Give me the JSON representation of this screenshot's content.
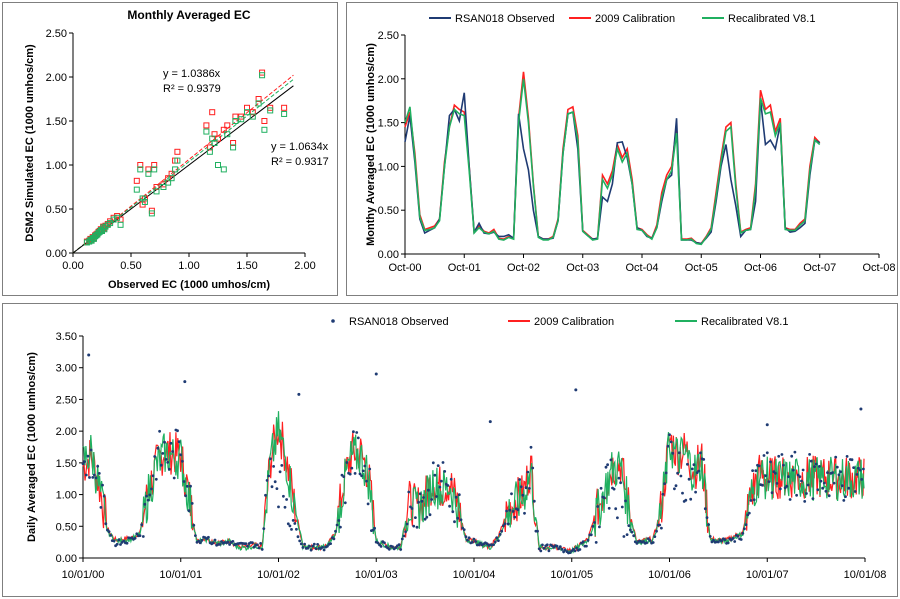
{
  "colors": {
    "observed": "#1f3b73",
    "calib2009": "#ff2020",
    "recal": "#20b060",
    "fitObserved": "#000000"
  },
  "chart_data": [
    {
      "type": "scatter",
      "title": "Monthly Averaged EC",
      "xlabel": "Observed EC (1000 umhos/cm)",
      "ylabel": "DSM2 Simulated EC (1000 umhos/cm)",
      "xlim": [
        0,
        2.0
      ],
      "ylim": [
        0,
        2.5
      ],
      "xticks": [
        "0.00",
        "0.50",
        "1.00",
        "1.50",
        "2.00"
      ],
      "yticks": [
        "0.00",
        "0.50",
        "1.00",
        "1.50",
        "2.00",
        "2.50"
      ],
      "annotations": [
        {
          "text": "y = 1.0386x",
          "series": "Recalibrated V8.1"
        },
        {
          "text": "R² = 0.9379",
          "series": "Recalibrated V8.1"
        },
        {
          "text": "y = 1.0634x",
          "series": "2009 Calibration"
        },
        {
          "text": "R² = 0.9317",
          "series": "2009 Calibration"
        }
      ],
      "trendlines": [
        {
          "series": "2009 Calibration",
          "slope": 1.0634
        },
        {
          "series": "Recalibrated V8.1",
          "slope": 1.0386
        },
        {
          "series": "1:1",
          "slope": 1.0
        }
      ],
      "series": [
        {
          "name": "2009 Calibration",
          "points": [
            [
              0.12,
              0.13
            ],
            [
              0.14,
              0.14
            ],
            [
              0.15,
              0.16
            ],
            [
              0.16,
              0.15
            ],
            [
              0.17,
              0.18
            ],
            [
              0.18,
              0.17
            ],
            [
              0.19,
              0.2
            ],
            [
              0.2,
              0.21
            ],
            [
              0.21,
              0.22
            ],
            [
              0.22,
              0.24
            ],
            [
              0.23,
              0.25
            ],
            [
              0.24,
              0.27
            ],
            [
              0.25,
              0.26
            ],
            [
              0.26,
              0.3
            ],
            [
              0.27,
              0.28
            ],
            [
              0.28,
              0.31
            ],
            [
              0.3,
              0.33
            ],
            [
              0.32,
              0.36
            ],
            [
              0.35,
              0.4
            ],
            [
              0.38,
              0.42
            ],
            [
              0.41,
              0.38
            ],
            [
              0.55,
              0.82
            ],
            [
              0.58,
              1.0
            ],
            [
              0.6,
              0.55
            ],
            [
              0.62,
              0.62
            ],
            [
              0.65,
              0.95
            ],
            [
              0.68,
              0.48
            ],
            [
              0.7,
              1.0
            ],
            [
              0.72,
              0.75
            ],
            [
              0.78,
              0.78
            ],
            [
              0.82,
              0.85
            ],
            [
              0.85,
              0.9
            ],
            [
              0.88,
              1.05
            ],
            [
              0.9,
              1.15
            ],
            [
              1.15,
              1.45
            ],
            [
              1.18,
              1.2
            ],
            [
              1.2,
              1.6
            ],
            [
              1.22,
              1.35
            ],
            [
              1.25,
              1.3
            ],
            [
              1.3,
              1.4
            ],
            [
              1.33,
              1.45
            ],
            [
              1.38,
              1.25
            ],
            [
              1.4,
              1.55
            ],
            [
              1.45,
              1.55
            ],
            [
              1.5,
              1.65
            ],
            [
              1.55,
              1.6
            ],
            [
              1.6,
              1.75
            ],
            [
              1.63,
              2.05
            ],
            [
              1.65,
              1.5
            ],
            [
              1.7,
              1.65
            ],
            [
              1.82,
              1.65
            ]
          ]
        },
        {
          "name": "Recalibrated V8.1",
          "points": [
            [
              0.12,
              0.12
            ],
            [
              0.14,
              0.13
            ],
            [
              0.15,
              0.15
            ],
            [
              0.16,
              0.14
            ],
            [
              0.17,
              0.17
            ],
            [
              0.18,
              0.16
            ],
            [
              0.19,
              0.19
            ],
            [
              0.2,
              0.2
            ],
            [
              0.21,
              0.21
            ],
            [
              0.22,
              0.23
            ],
            [
              0.23,
              0.24
            ],
            [
              0.24,
              0.26
            ],
            [
              0.25,
              0.25
            ],
            [
              0.26,
              0.29
            ],
            [
              0.27,
              0.27
            ],
            [
              0.28,
              0.3
            ],
            [
              0.3,
              0.32
            ],
            [
              0.32,
              0.34
            ],
            [
              0.35,
              0.38
            ],
            [
              0.38,
              0.4
            ],
            [
              0.41,
              0.32
            ],
            [
              0.55,
              0.72
            ],
            [
              0.58,
              0.95
            ],
            [
              0.6,
              0.62
            ],
            [
              0.62,
              0.58
            ],
            [
              0.65,
              0.9
            ],
            [
              0.68,
              0.45
            ],
            [
              0.7,
              0.95
            ],
            [
              0.72,
              0.7
            ],
            [
              0.78,
              0.75
            ],
            [
              0.82,
              0.8
            ],
            [
              0.85,
              0.85
            ],
            [
              0.88,
              0.95
            ],
            [
              0.9,
              1.05
            ],
            [
              1.15,
              1.38
            ],
            [
              1.18,
              1.15
            ],
            [
              1.2,
              1.3
            ],
            [
              1.22,
              1.25
            ],
            [
              1.25,
              1.0
            ],
            [
              1.3,
              0.95
            ],
            [
              1.33,
              1.35
            ],
            [
              1.38,
              1.2
            ],
            [
              1.4,
              1.5
            ],
            [
              1.45,
              1.52
            ],
            [
              1.5,
              1.6
            ],
            [
              1.55,
              1.55
            ],
            [
              1.6,
              1.7
            ],
            [
              1.63,
              2.02
            ],
            [
              1.65,
              1.4
            ],
            [
              1.7,
              1.62
            ],
            [
              1.82,
              1.58
            ]
          ]
        }
      ]
    },
    {
      "type": "line",
      "ylabel": "Monthy Averaged EC (1000 umhos/cm)",
      "ylim": [
        0,
        2.5
      ],
      "yticks": [
        "0.00",
        "0.50",
        "1.00",
        "1.50",
        "2.00",
        "2.50"
      ],
      "xticks": [
        "Oct-00",
        "Oct-01",
        "Oct-02",
        "Oct-03",
        "Oct-04",
        "Oct-05",
        "Oct-06",
        "Oct-07",
        "Oct-08"
      ],
      "legend": [
        "RSAN018 Observed",
        "2009 Calibration",
        "Recalibrated V8.1"
      ],
      "x_unit": "months since Oct-00",
      "series": [
        {
          "name": "RSAN018 Observed",
          "values": [
            1.28,
            1.58,
            1.05,
            0.4,
            0.24,
            0.27,
            0.3,
            0.4,
            1.0,
            1.58,
            1.65,
            1.52,
            1.84,
            1.0,
            0.25,
            0.35,
            0.24,
            0.23,
            0.25,
            0.2,
            0.2,
            0.22,
            0.18,
            1.6,
            1.2,
            0.96,
            0.5,
            0.2,
            0.17,
            0.17,
            0.18,
            0.38,
            1.15,
            1.6,
            1.62,
            1.2,
            0.26,
            0.21,
            0.17,
            0.18,
            0.65,
            0.6,
            0.8,
            1.27,
            1.28,
            1.1,
            0.8,
            0.3,
            0.27,
            0.2,
            0.18,
            0.3,
            0.6,
            0.85,
            0.9,
            1.55,
            0.16,
            0.16,
            0.16,
            0.13,
            0.12,
            0.18,
            0.25,
            0.6,
            1.0,
            1.25,
            0.85,
            0.55,
            0.2,
            0.27,
            0.28,
            0.6,
            1.76,
            1.25,
            1.3,
            1.2,
            1.48,
            0.3,
            0.25,
            0.26,
            0.3,
            0.35,
            0.9,
            1.3,
            1.27
          ]
        },
        {
          "name": "2009 Calibration",
          "values": [
            1.45,
            1.62,
            1.15,
            0.45,
            0.28,
            0.3,
            0.32,
            0.4,
            1.05,
            1.45,
            1.7,
            1.65,
            1.62,
            1.0,
            0.25,
            0.32,
            0.26,
            0.24,
            0.28,
            0.18,
            0.17,
            0.2,
            0.18,
            1.55,
            2.08,
            1.55,
            0.8,
            0.2,
            0.17,
            0.17,
            0.2,
            0.4,
            1.2,
            1.65,
            1.68,
            1.35,
            0.27,
            0.22,
            0.17,
            0.18,
            0.9,
            0.8,
            0.95,
            1.25,
            1.1,
            1.2,
            0.85,
            0.3,
            0.28,
            0.22,
            0.18,
            0.33,
            0.7,
            0.9,
            1.0,
            1.45,
            0.17,
            0.17,
            0.18,
            0.13,
            0.12,
            0.2,
            0.3,
            0.7,
            1.1,
            1.45,
            1.5,
            0.8,
            0.25,
            0.28,
            0.3,
            0.8,
            1.87,
            1.65,
            1.7,
            1.4,
            1.55,
            0.3,
            0.28,
            0.28,
            0.35,
            0.4,
            1.0,
            1.33,
            1.27
          ]
        },
        {
          "name": "Recalibrated V8.1",
          "values": [
            1.5,
            1.68,
            1.1,
            0.42,
            0.27,
            0.28,
            0.3,
            0.38,
            1.0,
            1.45,
            1.65,
            1.6,
            1.58,
            0.95,
            0.24,
            0.3,
            0.25,
            0.23,
            0.26,
            0.17,
            0.16,
            0.19,
            0.17,
            1.5,
            2.0,
            1.5,
            0.78,
            0.19,
            0.16,
            0.16,
            0.19,
            0.38,
            1.15,
            1.6,
            1.62,
            1.3,
            0.26,
            0.21,
            0.16,
            0.17,
            0.85,
            0.75,
            0.9,
            1.2,
            1.05,
            1.15,
            0.8,
            0.28,
            0.27,
            0.21,
            0.17,
            0.3,
            0.65,
            0.85,
            0.95,
            1.38,
            0.16,
            0.16,
            0.17,
            0.12,
            0.11,
            0.19,
            0.28,
            0.65,
            1.05,
            1.4,
            1.45,
            0.75,
            0.24,
            0.27,
            0.28,
            0.75,
            1.78,
            1.6,
            1.62,
            1.35,
            1.5,
            0.28,
            0.27,
            0.27,
            0.33,
            0.38,
            0.95,
            1.3,
            1.25
          ]
        }
      ]
    },
    {
      "type": "line",
      "ylabel": "Daily Averaged EC (1000 umhos/cm)",
      "ylim": [
        0,
        3.5
      ],
      "yticks": [
        "0.00",
        "0.50",
        "1.00",
        "1.50",
        "2.00",
        "2.50",
        "3.00",
        "3.50"
      ],
      "xticks": [
        "10/01/00",
        "10/01/01",
        "10/01/02",
        "10/01/03",
        "10/01/04",
        "10/01/05",
        "10/01/06",
        "10/01/07",
        "10/01/08"
      ],
      "legend": [
        "RSAN018 Observed",
        "2009 Calibration",
        "Recalibrated V8.1"
      ],
      "x_unit": "months since 10/01/00",
      "observed_peaks": [
        [
          3.2,
          0.7
        ],
        [
          2.78,
          12.5
        ],
        [
          2.58,
          26.5
        ],
        [
          2.9,
          36
        ],
        [
          2.15,
          50
        ],
        [
          2.65,
          60.5
        ],
        [
          2.1,
          84
        ],
        [
          2.35,
          95.5
        ]
      ]
    }
  ]
}
